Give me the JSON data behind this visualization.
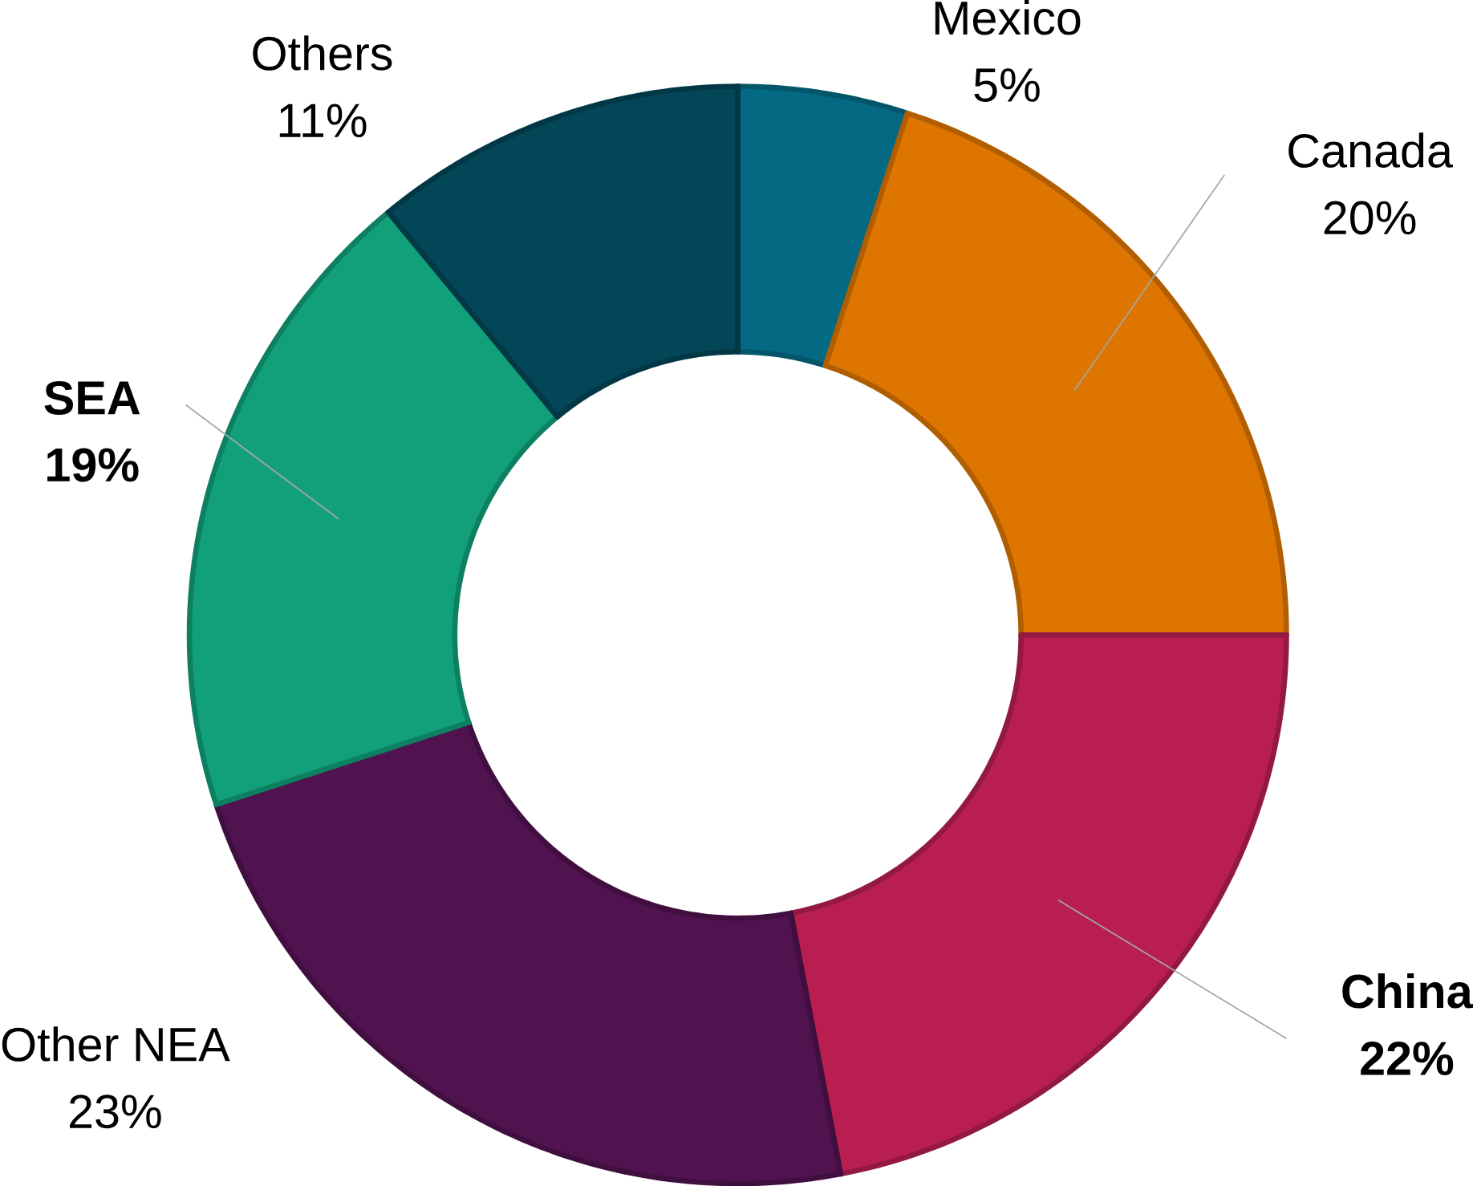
{
  "chart_data": {
    "type": "donut",
    "categories": [
      "Mexico",
      "Canada",
      "**China**",
      "Other NEA",
      "**SEA**",
      "Others"
    ],
    "values": [
      5,
      20,
      22,
      23,
      19,
      11
    ],
    "value_labels": [
      "5%",
      "20%",
      "**22%**",
      "23%",
      "**19%**",
      "11%"
    ],
    "colors": [
      "#046a84",
      "#dd7500",
      "#b81f50",
      "#501350",
      "#12a07a",
      "#034658"
    ]
  }
}
